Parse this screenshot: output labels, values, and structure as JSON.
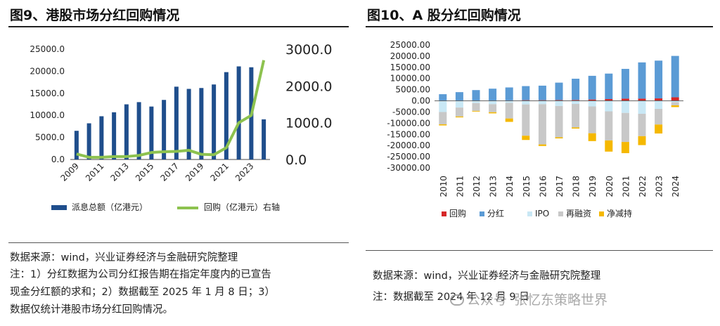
{
  "left_panel": {
    "title": "图9、港股市场分红回购情况",
    "source": "数据来源：wind，兴业证券经济与金融研究院整理",
    "notes": [
      "注：1）分红数据为公司分红报告期在指定年度内的已宣告",
      "现金分红额的求和；2）数据截至 2025 年 1 月 8 日；3）",
      "数据仅统计港股市场分红回购情况。"
    ]
  },
  "right_panel": {
    "title": "图10、A 股分红回购情况",
    "source": "数据来源：wind，兴业证券经济与金融研究院整理",
    "note": "注：数据截至 2024 年 12 月 9 日"
  },
  "watermark": {
    "channel": "公众号",
    "name": "张忆东策略世界"
  },
  "colors": {
    "hk_bar": "#1f4e8c",
    "hk_line": "#8dc24f",
    "a_buyback": "#d62728",
    "a_dividend": "#5b9bd5",
    "a_ipo": "#c9e8f5",
    "a_refinance": "#c8c8c8",
    "a_reduction": "#f5b800"
  },
  "chart_data": [
    {
      "type": "bar",
      "categories": [
        "2009",
        "2010",
        "2011",
        "2012",
        "2013",
        "2014",
        "2015",
        "2016",
        "2017",
        "2018",
        "2019",
        "2020",
        "2021",
        "2022",
        "2023",
        "2024"
      ],
      "tick_labels": [
        "2009",
        "2011",
        "2013",
        "2015",
        "2017",
        "2019",
        "2021",
        "2023"
      ],
      "series": [
        {
          "name": "派息总额（亿港元）",
          "kind": "bar",
          "axis": "left",
          "values": [
            6500,
            8200,
            9800,
            10700,
            12500,
            13000,
            12000,
            13500,
            16500,
            16000,
            16200,
            17000,
            19800,
            21100,
            20900,
            9100
          ]
        },
        {
          "name": "回购（亿港元）右轴",
          "kind": "line",
          "axis": "right",
          "values": [
            150,
            60,
            60,
            80,
            80,
            110,
            190,
            210,
            220,
            250,
            140,
            130,
            320,
            1000,
            1200,
            2700
          ]
        }
      ],
      "yticks_left": [
        "25000.0",
        "20000.0",
        "15000.0",
        "10000.0",
        "5000.0",
        "0.0"
      ],
      "yticks_right": [
        "3000.0",
        "2000.0",
        "1000.0",
        "0.0"
      ],
      "ylim_left": [
        0,
        25000
      ],
      "ylim_right": [
        0,
        3000
      ],
      "legend": "bottom"
    },
    {
      "type": "bar",
      "stacked": true,
      "categories": [
        "2010",
        "2011",
        "2012",
        "2013",
        "2014",
        "2015",
        "2016",
        "2017",
        "2018",
        "2019",
        "2020",
        "2021",
        "2022",
        "2023",
        "2024"
      ],
      "series": [
        {
          "name": "回购",
          "key": "buyback",
          "values": [
            80,
            100,
            120,
            150,
            200,
            300,
            300,
            350,
            400,
            600,
            800,
            1000,
            1000,
            1100,
            1600
          ]
        },
        {
          "name": "分红",
          "key": "dividend",
          "values": [
            2900,
            3800,
            4700,
            5300,
            5800,
            6300,
            6500,
            7800,
            9500,
            10600,
            11400,
            13300,
            16200,
            16900,
            18500
          ]
        },
        {
          "name": "IPO",
          "key": "ipo",
          "values": [
            -5000,
            -3000,
            -1000,
            -1500,
            -900,
            -1600,
            -1500,
            -2300,
            -1400,
            -2500,
            -4700,
            -5400,
            -5800,
            -3600,
            -600
          ]
        },
        {
          "name": "再融资",
          "key": "refinance",
          "values": [
            -5500,
            -4000,
            -3500,
            -3600,
            -7000,
            -14000,
            -18000,
            -14000,
            -10500,
            -12000,
            -13000,
            -13000,
            -10000,
            -7000,
            -1400
          ]
        },
        {
          "name": "净减持",
          "key": "reduction",
          "values": [
            -500,
            -400,
            -300,
            -500,
            -1500,
            -1900,
            -700,
            -500,
            -500,
            -3500,
            -5000,
            -5000,
            -4000,
            -4000,
            -800
          ]
        }
      ],
      "yticks": [
        "25000.00",
        "20000.00",
        "15000.00",
        "10000.00",
        "5000.00",
        "0.00",
        "-5000.00",
        "-10000.00",
        "-15000.00",
        "-20000.00",
        "-25000.00",
        "-30000.00"
      ],
      "ylim": [
        -30000,
        25000
      ],
      "legend": "bottom"
    }
  ]
}
